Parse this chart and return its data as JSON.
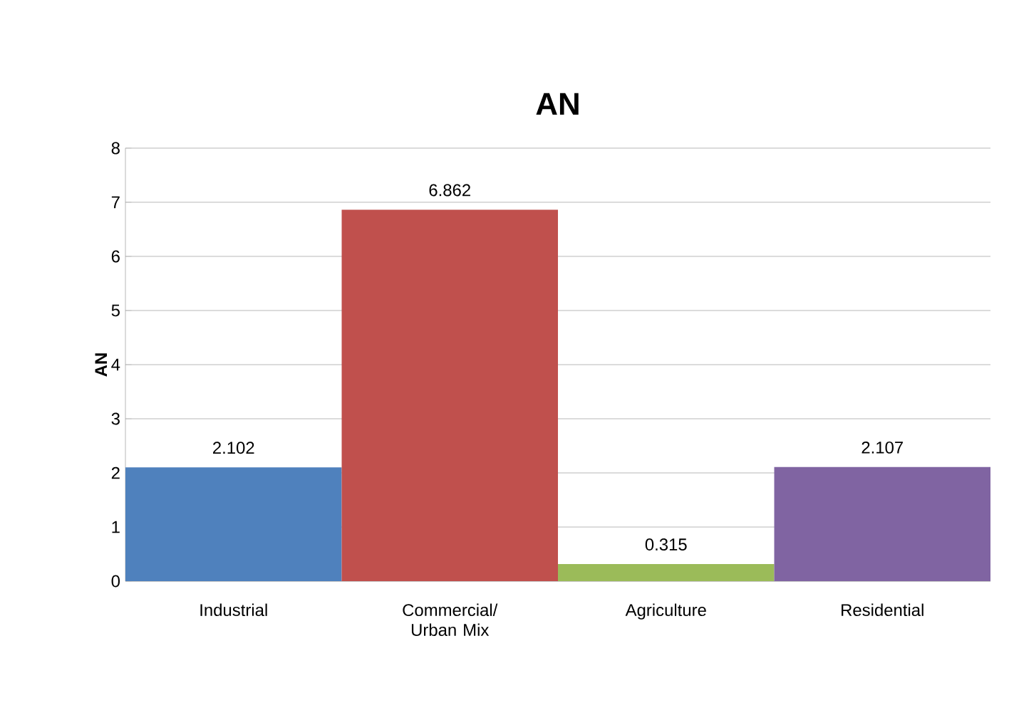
{
  "chart_data": {
    "type": "bar",
    "title": "AN",
    "ylabel": "AN",
    "categories": [
      "Industrial",
      "Commercial/ Urban Mix",
      "Agriculture",
      "Residential"
    ],
    "values": [
      2.102,
      6.862,
      0.315,
      2.107
    ],
    "colors": [
      "#4f81bd",
      "#c0504d",
      "#9bbb59",
      "#8064a2"
    ],
    "ylim": [
      0,
      8
    ],
    "yticks": [
      0,
      1,
      2,
      3,
      4,
      5,
      6,
      7,
      8
    ],
    "grid": "y",
    "data_labels": true
  }
}
